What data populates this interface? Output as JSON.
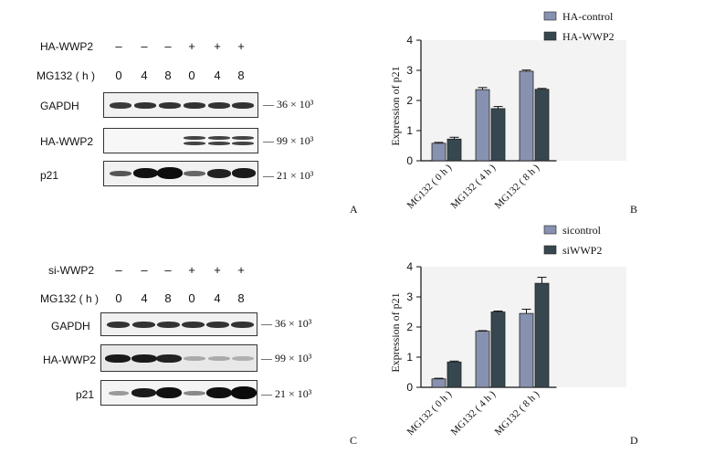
{
  "panels": {
    "A": {
      "letter": "A",
      "row_labels": {
        "treatment": "HA-WWP2",
        "timepoint": "MG132 ( h )"
      },
      "treatment_symbols": [
        "–",
        "–",
        "–",
        "+",
        "+",
        "+"
      ],
      "timepoints": [
        "0",
        "4",
        "8",
        "0",
        "4",
        "8"
      ],
      "blots": [
        {
          "name": "GAPDH",
          "mw_label": "— 36 × 10³"
        },
        {
          "name": "HA-WWP2",
          "mw_label": "— 99 × 10³"
        },
        {
          "name": "p21",
          "mw_label": "— 21 × 10³"
        }
      ]
    },
    "C": {
      "letter": "C",
      "row_labels": {
        "treatment": "si-WWP2",
        "timepoint": "MG132 ( h )"
      },
      "treatment_symbols": [
        "–",
        "–",
        "–",
        "+",
        "+",
        "+"
      ],
      "timepoints": [
        "0",
        "4",
        "8",
        "0",
        "4",
        "8"
      ],
      "blots": [
        {
          "name": "GAPDH",
          "mw_label": "— 36 × 10³"
        },
        {
          "name": "HA-WWP2",
          "mw_label": "— 99 × 10³"
        },
        {
          "name": "p21",
          "mw_label": "— 21 × 10³"
        }
      ]
    },
    "B": {
      "letter": "B"
    },
    "D": {
      "letter": "D"
    }
  },
  "chart_data": [
    {
      "type": "bar",
      "panel": "B",
      "categories": [
        "MG132 ( 0 h )",
        "MG132 ( 4 h )",
        "MG132 ( 8 h )"
      ],
      "series": [
        {
          "name": "HA-control",
          "values": [
            0.58,
            2.36,
            2.97
          ],
          "errors": [
            0.03,
            0.07,
            0.04
          ],
          "color": "#8792b0"
        },
        {
          "name": "HA-WWP2",
          "values": [
            0.72,
            1.73,
            2.37
          ],
          "errors": [
            0.06,
            0.07,
            0.03
          ],
          "color": "#37474f"
        }
      ],
      "ylabel": "Expression of p21",
      "ylim": [
        0,
        4
      ],
      "yticks": [
        "0",
        "1",
        "2",
        "3",
        "4"
      ],
      "legend": "top"
    },
    {
      "type": "bar",
      "panel": "D",
      "categories": [
        "MG132 ( 0 h )",
        "MG132 ( 4 h )",
        "MG132 ( 8 h )"
      ],
      "series": [
        {
          "name": "sicontrol",
          "values": [
            0.28,
            1.86,
            2.45
          ],
          "errors": [
            0.02,
            0.02,
            0.14
          ],
          "color": "#8792b0"
        },
        {
          "name": "siWWP2",
          "values": [
            0.84,
            2.5,
            3.45
          ],
          "errors": [
            0.03,
            0.03,
            0.2
          ],
          "color": "#37474f"
        }
      ],
      "ylabel": "Expression of p21",
      "ylim": [
        0,
        4
      ],
      "yticks": [
        "0",
        "1",
        "2",
        "3",
        "4"
      ],
      "legend": "top"
    }
  ]
}
